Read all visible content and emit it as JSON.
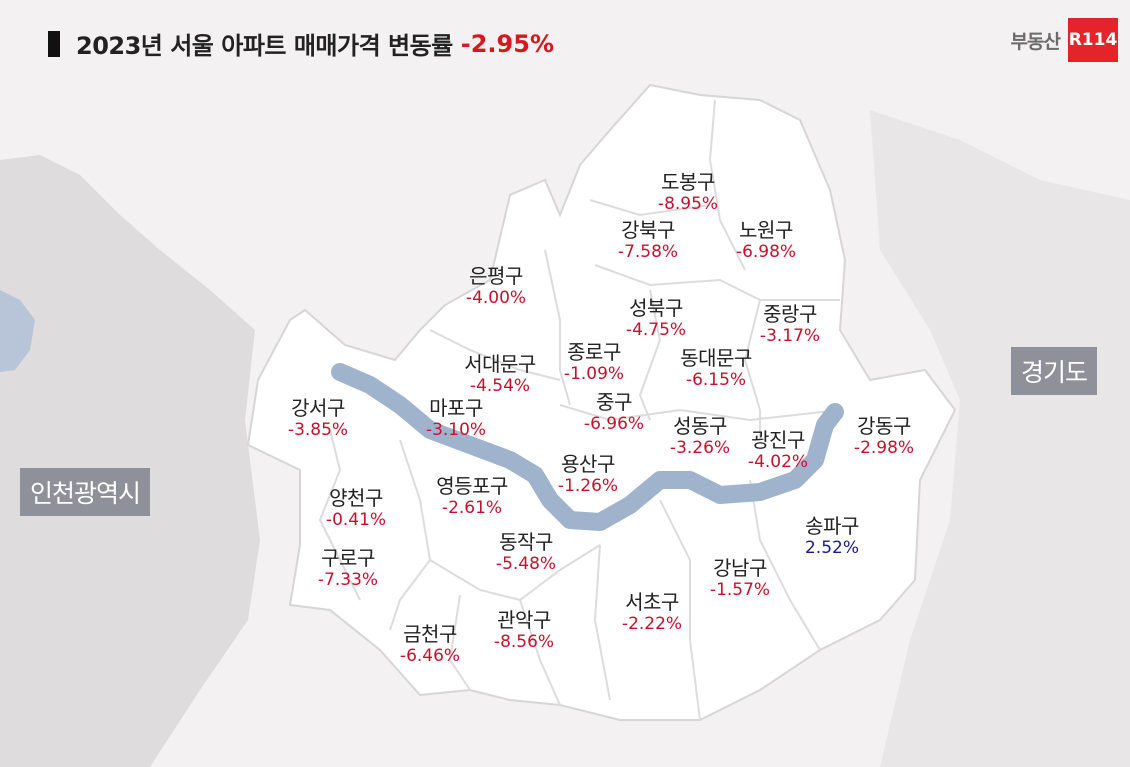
{
  "title": {
    "text": "2023년 서울 아파트 매매가격 변동률",
    "value": "-2.95%",
    "value_color": "#d7191f"
  },
  "logo": {
    "text": "부동산",
    "badge": "R114",
    "badge_color": "#e5232b"
  },
  "regions": {
    "left": "인천광역시",
    "right": "경기도"
  },
  "colors": {
    "decline": "#c8102e",
    "rise": "#1a1a8c",
    "land": "#ffffff",
    "border": "#d6d6d6",
    "river": "#9fb3cc",
    "outside": "#dedcdc",
    "sea": "#b8c4d8"
  },
  "districts": [
    {
      "name": "도봉구",
      "value": "-8.95%",
      "change": -8.95
    },
    {
      "name": "강북구",
      "value": "-7.58%",
      "change": -7.58
    },
    {
      "name": "노원구",
      "value": "-6.98%",
      "change": -6.98
    },
    {
      "name": "은평구",
      "value": "-4.00%",
      "change": -4.0
    },
    {
      "name": "성북구",
      "value": "-4.75%",
      "change": -4.75
    },
    {
      "name": "중랑구",
      "value": "-3.17%",
      "change": -3.17
    },
    {
      "name": "서대문구",
      "value": "-4.54%",
      "change": -4.54
    },
    {
      "name": "종로구",
      "value": "-1.09%",
      "change": -1.09
    },
    {
      "name": "동대문구",
      "value": "-6.15%",
      "change": -6.15
    },
    {
      "name": "강서구",
      "value": "-3.85%",
      "change": -3.85
    },
    {
      "name": "마포구",
      "value": "-3.10%",
      "change": -3.1
    },
    {
      "name": "중구",
      "value": "-6.96%",
      "change": -6.96
    },
    {
      "name": "성동구",
      "value": "-3.26%",
      "change": -3.26
    },
    {
      "name": "광진구",
      "value": "-4.02%",
      "change": -4.02
    },
    {
      "name": "강동구",
      "value": "-2.98%",
      "change": -2.98
    },
    {
      "name": "용산구",
      "value": "-1.26%",
      "change": -1.26
    },
    {
      "name": "영등포구",
      "value": "-2.61%",
      "change": -2.61
    },
    {
      "name": "양천구",
      "value": "-0.41%",
      "change": -0.41
    },
    {
      "name": "송파구",
      "value": "2.52%",
      "change": 2.52
    },
    {
      "name": "동작구",
      "value": "-5.48%",
      "change": -5.48
    },
    {
      "name": "구로구",
      "value": "-7.33%",
      "change": -7.33
    },
    {
      "name": "강남구",
      "value": "-1.57%",
      "change": -1.57
    },
    {
      "name": "서초구",
      "value": "-2.22%",
      "change": -2.22
    },
    {
      "name": "금천구",
      "value": "-6.46%",
      "change": -6.46
    },
    {
      "name": "관악구",
      "value": "-8.56%",
      "change": -8.56
    }
  ]
}
